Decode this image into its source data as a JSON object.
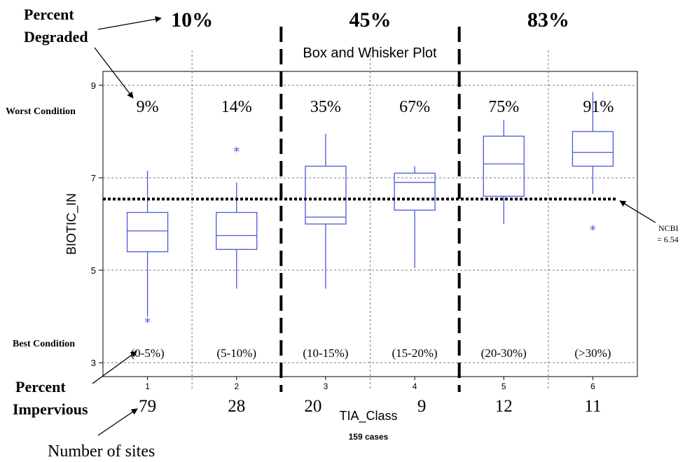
{
  "chart_data": {
    "type": "box",
    "title": "Box and Whisker Plot",
    "xlabel": "TIA_Class",
    "ylabel": "BIOTIC_IN",
    "cases_label": "159 cases",
    "ylim": [
      2.7,
      9.3
    ],
    "yticks": [
      3,
      5,
      7,
      9
    ],
    "categories": [
      "1",
      "2",
      "3",
      "4",
      "5",
      "6"
    ],
    "boxes": [
      {
        "category": "1",
        "whisker_low": 4.0,
        "q1": 5.4,
        "median": 5.85,
        "q3": 6.25,
        "whisker_high": 7.15,
        "outliers": [
          3.9
        ]
      },
      {
        "category": "2",
        "whisker_low": 4.6,
        "q1": 5.45,
        "median": 5.75,
        "q3": 6.25,
        "whisker_high": 6.9,
        "outliers": [
          7.6
        ]
      },
      {
        "category": "3",
        "whisker_low": 4.6,
        "q1": 6.0,
        "median": 6.15,
        "q3": 7.25,
        "whisker_high": 7.95,
        "outliers": []
      },
      {
        "category": "4",
        "whisker_low": 5.05,
        "q1": 6.3,
        "median": 6.9,
        "q3": 7.1,
        "whisker_high": 7.25,
        "outliers": []
      },
      {
        "category": "5",
        "whisker_low": 6.0,
        "q1": 6.6,
        "median": 7.3,
        "q3": 7.9,
        "whisker_high": 8.25,
        "outliers": []
      },
      {
        "category": "6",
        "whisker_low": 6.65,
        "q1": 7.25,
        "median": 7.55,
        "q3": 8.0,
        "whisker_high": 8.85,
        "outliers": [
          5.9
        ]
      }
    ],
    "reference_line": {
      "value": 6.54,
      "label_line1": "NCBI",
      "label_line2": "= 6.54"
    },
    "percent_degraded_per_class": [
      "9%",
      "14%",
      "35%",
      "67%",
      "75%",
      "91%"
    ],
    "percent_impervious_ranges": [
      "(0-5%)",
      "(5-10%)",
      "(10-15%)",
      "(15-20%)",
      "(20-30%)",
      "(>30%)"
    ],
    "number_of_sites": [
      "79",
      "28",
      "20",
      "9",
      "12",
      "11"
    ],
    "group_percent_degraded": [
      "10%",
      "45%",
      "83%"
    ],
    "group_boundaries_after_category": [
      "2",
      "4"
    ]
  },
  "annotations": {
    "percent_degraded_line1": "Percent",
    "percent_degraded_line2": "Degraded",
    "worst_condition": "Worst Condition",
    "best_condition": "Best Condition",
    "percent_impervious_line1": "Percent",
    "percent_impervious_line2": "Impervious",
    "number_of_sites": "Number of sites"
  },
  "colors": {
    "box": "#4a5ad6",
    "grid": "#7a7a7a",
    "axis": "#000000",
    "text": "#000000"
  }
}
